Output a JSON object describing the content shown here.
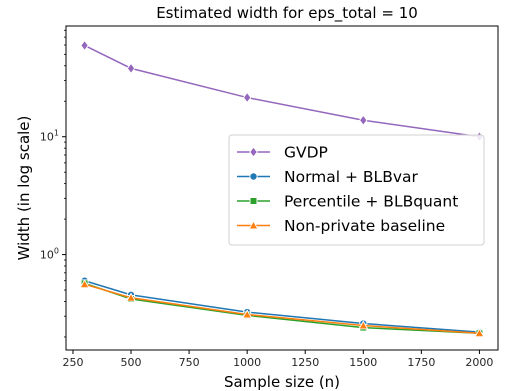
{
  "chart_data": {
    "type": "line",
    "title": "Estimated width for eps_total = 10",
    "xlabel": "Sample size (n)",
    "ylabel": "Width (in log scale)",
    "xlim": [
      220,
      2080
    ],
    "ylim": [
      0.155,
      87
    ],
    "yscale": "log",
    "x_ticks": [
      250,
      500,
      750,
      1000,
      1250,
      1500,
      1750,
      2000
    ],
    "x_tick_labels": [
      "250",
      "500",
      "750",
      "1000",
      "1250",
      "1500",
      "1750",
      "2000"
    ],
    "y_ticks": [
      {
        "value": 1,
        "base": "10",
        "exp": "0"
      },
      {
        "value": 10,
        "base": "10",
        "exp": "1"
      }
    ],
    "legend_position": "center-right",
    "grid": false,
    "series": [
      {
        "name": "GVDP",
        "color": "#9467bd",
        "marker": "diamond",
        "x": [
          300,
          500,
          1000,
          1500,
          2000
        ],
        "values": [
          59.5,
          38.0,
          21.5,
          13.8,
          10.0
        ]
      },
      {
        "name": "Normal + BLBvar",
        "color": "#1f77b4",
        "marker": "circle",
        "x": [
          300,
          500,
          1000,
          1500,
          2000
        ],
        "values": [
          0.6,
          0.455,
          0.325,
          0.26,
          0.22
        ]
      },
      {
        "name": "Percentile + BLBquant",
        "color": "#2ca02c",
        "marker": "square",
        "x": [
          300,
          500,
          1000,
          1500,
          2000
        ],
        "values": [
          0.57,
          0.42,
          0.305,
          0.24,
          0.215
        ]
      },
      {
        "name": "Non-private baseline",
        "color": "#ff7f0e",
        "marker": "triangle",
        "x": [
          300,
          500,
          1000,
          1500,
          2000
        ],
        "values": [
          0.56,
          0.43,
          0.31,
          0.25,
          0.215
        ]
      }
    ]
  }
}
